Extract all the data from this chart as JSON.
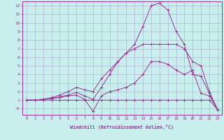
{
  "xlabel": "Windchill (Refroidissement éolien,°C)",
  "background_color": "#c8eeee",
  "grid_color": "#aaaacc",
  "line_color": "#993399",
  "xticks": [
    0,
    1,
    2,
    3,
    4,
    5,
    6,
    7,
    8,
    9,
    10,
    11,
    12,
    13,
    14,
    15,
    16,
    17,
    18,
    19,
    20,
    21,
    22,
    23
  ],
  "yticks": [
    0,
    1,
    2,
    3,
    4,
    5,
    6,
    7,
    8,
    9,
    10,
    11,
    12
  ],
  "ytick_labels": [
    "-0",
    "1",
    "2",
    "3",
    "4",
    "5",
    "6",
    "7",
    "8",
    "9",
    "10",
    "11",
    "12"
  ],
  "line1_y": [
    1,
    1,
    1,
    1,
    1,
    1,
    1,
    1,
    1,
    1,
    1,
    1,
    1,
    1,
    1,
    1,
    1,
    1,
    1,
    1,
    1,
    1,
    1,
    -0.1
  ],
  "line2_y": [
    1.0,
    1.0,
    1.1,
    1.2,
    1.3,
    1.5,
    1.6,
    1.1,
    -0.3,
    1.5,
    2.0,
    2.2,
    2.5,
    3.0,
    4.0,
    5.5,
    5.5,
    5.2,
    4.5,
    4.0,
    4.5,
    1.8,
    1.5,
    -0.1
  ],
  "line3_y": [
    1.0,
    1.0,
    1.1,
    1.2,
    1.4,
    1.6,
    1.9,
    1.5,
    1.1,
    2.5,
    4.0,
    5.5,
    6.5,
    7.5,
    9.6,
    12.0,
    12.3,
    11.5,
    9.0,
    7.5,
    4.0,
    3.8,
    1.8,
    -0.1
  ],
  "line4_y": [
    1.0,
    1.0,
    1.1,
    1.3,
    1.6,
    2.0,
    2.5,
    2.2,
    2.0,
    3.5,
    4.5,
    5.5,
    6.5,
    7.0,
    7.5,
    7.5,
    7.5,
    7.5,
    7.5,
    7.0,
    5.5,
    5.0,
    2.0,
    -0.1
  ]
}
